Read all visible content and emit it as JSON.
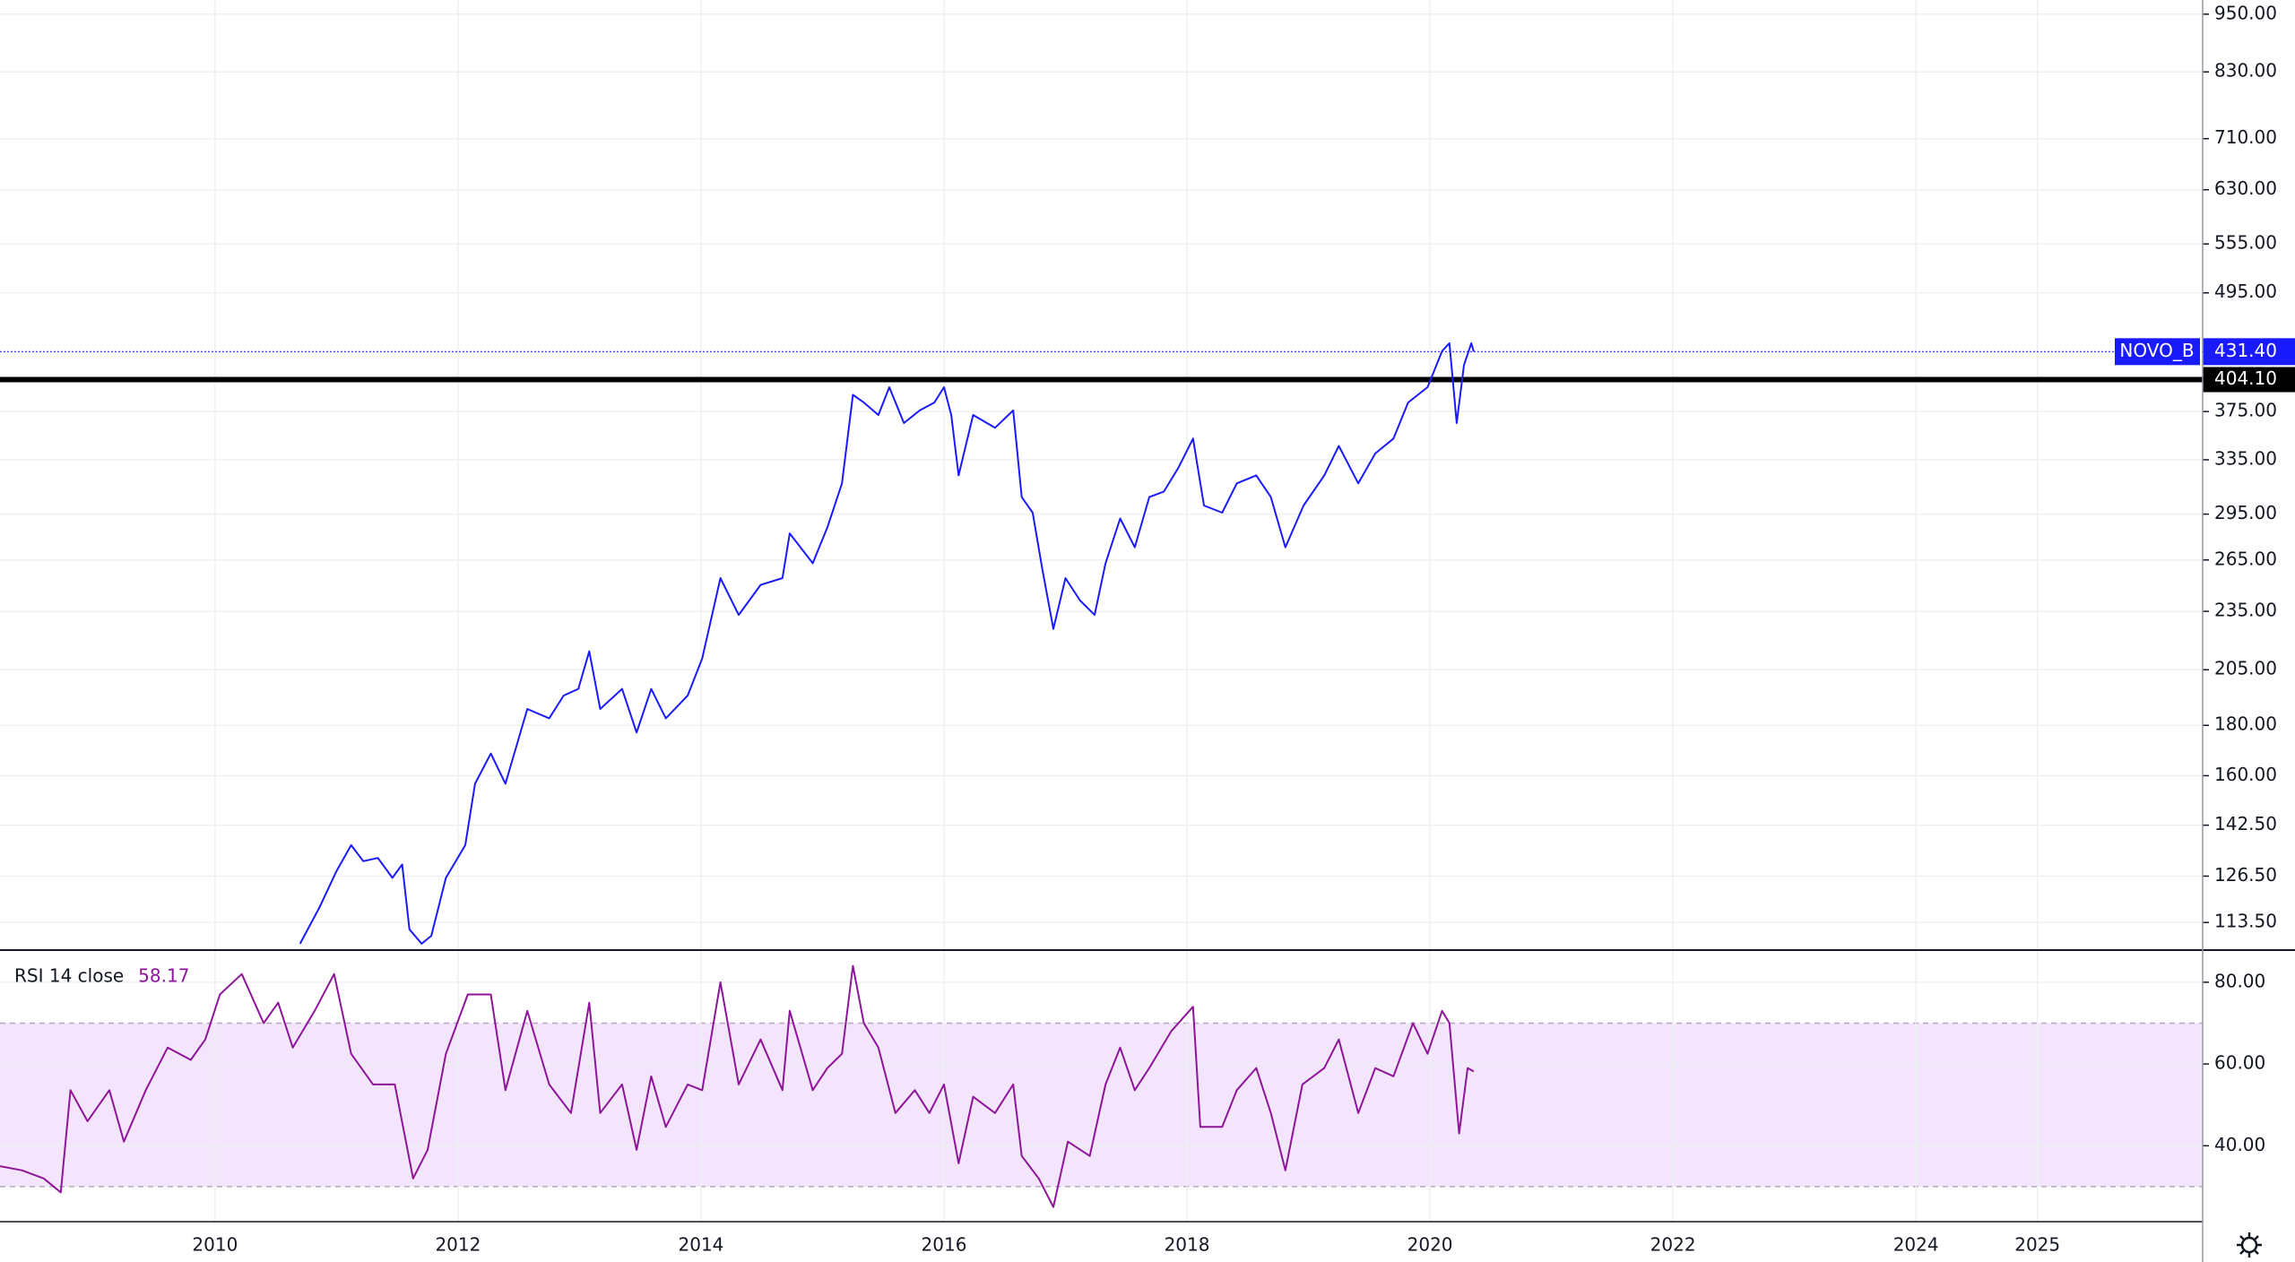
{
  "chart_data": [
    {
      "type": "line",
      "log_scale": true,
      "grid": true,
      "series": [
        {
          "name": "NOVO_B",
          "color": "#1a1aff",
          "x": [
            2010.7,
            2010.86,
            2011.0,
            2011.12,
            2011.22,
            2011.34,
            2011.46,
            2011.54,
            2011.6,
            2011.7,
            2011.78,
            2011.9,
            2012.06,
            2012.14,
            2012.27,
            2012.39,
            2012.57,
            2012.75,
            2012.87,
            2012.99,
            2013.08,
            2013.17,
            2013.35,
            2013.47,
            2013.59,
            2013.71,
            2013.89,
            2014.01,
            2014.16,
            2014.31,
            2014.49,
            2014.67,
            2014.73,
            2014.92,
            2015.04,
            2015.16,
            2015.25,
            2015.34,
            2015.46,
            2015.55,
            2015.67,
            2015.8,
            2015.92,
            2016.0,
            2016.06,
            2016.12,
            2016.24,
            2016.42,
            2016.57,
            2016.64,
            2016.73,
            2016.81,
            2016.9,
            2017.0,
            2017.12,
            2017.24,
            2017.33,
            2017.45,
            2017.57,
            2017.69,
            2017.81,
            2017.93,
            2018.05,
            2018.14,
            2018.29,
            2018.41,
            2018.57,
            2018.69,
            2018.81,
            2018.96,
            2019.13,
            2019.25,
            2019.41,
            2019.55,
            2019.7,
            2019.82,
            2019.98,
            2020.1,
            2020.16,
            2020.22,
            2020.28,
            2020.34,
            2020.36
          ],
          "values": [
            108,
            117.6,
            128,
            136,
            131,
            132,
            126,
            130,
            111.7,
            108,
            110,
            126,
            136,
            157,
            168.5,
            157,
            187,
            183,
            193,
            196,
            214,
            187,
            196,
            177,
            196,
            183,
            193,
            210.5,
            254,
            233,
            250,
            254,
            282,
            263,
            286,
            317,
            390,
            383,
            372,
            397,
            365,
            376,
            383,
            397,
            372,
            323,
            372,
            361,
            376,
            307,
            296,
            259,
            225.5,
            254,
            241,
            233,
            263,
            292,
            273,
            307,
            311,
            329,
            352,
            301,
            296,
            317,
            323,
            307,
            273,
            301,
            323,
            346,
            317,
            340,
            352,
            383,
            397,
            432,
            440,
            365,
            418,
            440,
            431.4
          ]
        }
      ],
      "last_value": {
        "value": 431.4,
        "label": "431.40"
      },
      "hline": {
        "value": 404.1,
        "label": "404.10",
        "color": "#000000"
      },
      "xlim": [
        2008.23,
        2026.36
      ],
      "xticks": [
        2010,
        2012,
        2014,
        2016,
        2018,
        2020,
        2022,
        2024,
        2025
      ],
      "ylim": [
        106.4,
        982
      ],
      "yticks": [
        {
          "value": 950,
          "label": "950.00"
        },
        {
          "value": 830,
          "label": "830.00"
        },
        {
          "value": 710,
          "label": "710.00"
        },
        {
          "value": 630,
          "label": "630.00"
        },
        {
          "value": 555,
          "label": "555.00"
        },
        {
          "value": 495,
          "label": "495.00"
        },
        {
          "value": 375,
          "label": "375.00"
        },
        {
          "value": 335,
          "label": "335.00"
        },
        {
          "value": 295,
          "label": "295.00"
        },
        {
          "value": 265,
          "label": "265.00"
        },
        {
          "value": 235,
          "label": "235.00"
        },
        {
          "value": 205,
          "label": "205.00"
        },
        {
          "value": 180,
          "label": "180.00"
        },
        {
          "value": 160,
          "label": "160.00"
        },
        {
          "value": 142.5,
          "label": "142.50"
        },
        {
          "value": 126.5,
          "label": "126.50"
        },
        {
          "value": 113.5,
          "label": "113.50"
        }
      ]
    },
    {
      "type": "line",
      "grid": true,
      "series": [
        {
          "name": "RSI 14 close",
          "color": "#8e1599",
          "x": [
            2008.23,
            2008.41,
            2008.59,
            2008.73,
            2008.81,
            2008.95,
            2009.13,
            2009.25,
            2009.43,
            2009.61,
            2009.8,
            2009.92,
            2010.04,
            2010.22,
            2010.4,
            2010.52,
            2010.64,
            2010.82,
            2010.98,
            2011.12,
            2011.3,
            2011.48,
            2011.63,
            2011.75,
            2011.9,
            2012.08,
            2012.27,
            2012.39,
            2012.57,
            2012.75,
            2012.93,
            2013.08,
            2013.17,
            2013.35,
            2013.47,
            2013.59,
            2013.71,
            2013.89,
            2014.01,
            2014.16,
            2014.31,
            2014.49,
            2014.67,
            2014.73,
            2014.92,
            2015.04,
            2015.16,
            2015.25,
            2015.34,
            2015.46,
            2015.6,
            2015.76,
            2015.88,
            2016.0,
            2016.12,
            2016.24,
            2016.42,
            2016.57,
            2016.64,
            2016.78,
            2016.9,
            2017.02,
            2017.2,
            2017.33,
            2017.45,
            2017.57,
            2017.69,
            2017.87,
            2018.05,
            2018.11,
            2018.29,
            2018.41,
            2018.57,
            2018.69,
            2018.81,
            2018.95,
            2019.13,
            2019.25,
            2019.41,
            2019.55,
            2019.7,
            2019.86,
            2019.98,
            2020.1,
            2020.16,
            2020.24,
            2020.31,
            2020.36
          ],
          "values": [
            35,
            34,
            32,
            28.6,
            53.6,
            46,
            53.6,
            41,
            53.6,
            64,
            61,
            66,
            77,
            82,
            70,
            75,
            64,
            73,
            82,
            62.5,
            55,
            55,
            32,
            39,
            62.5,
            77,
            77,
            53.6,
            73,
            55,
            48,
            75,
            48,
            55,
            39,
            57,
            44.6,
            55,
            53.6,
            80,
            55,
            66,
            53.6,
            73,
            53.6,
            59,
            62.5,
            84,
            70,
            64,
            48,
            53.6,
            48,
            55,
            35.7,
            52,
            48,
            55,
            37.5,
            32,
            25,
            41,
            37.5,
            55,
            64,
            53.6,
            59,
            68,
            74,
            44.6,
            44.6,
            53.6,
            59,
            48,
            34,
            55,
            59,
            66,
            48,
            59,
            57,
            70,
            62.5,
            73,
            70,
            43,
            59,
            58.17
          ]
        }
      ],
      "legend_value": 58.17,
      "band": [
        30,
        70
      ],
      "band_color": "#f3e5fb",
      "xlim": [
        2008.23,
        2026.36
      ],
      "xticks": [
        2010,
        2012,
        2014,
        2016,
        2018,
        2020,
        2022,
        2024,
        2025
      ],
      "ylim": [
        21.43,
        87.86
      ],
      "yticks": [
        {
          "value": 80,
          "label": "80.00"
        },
        {
          "value": 60,
          "label": "60.00"
        },
        {
          "value": 40,
          "label": "40.00"
        }
      ]
    }
  ]
}
